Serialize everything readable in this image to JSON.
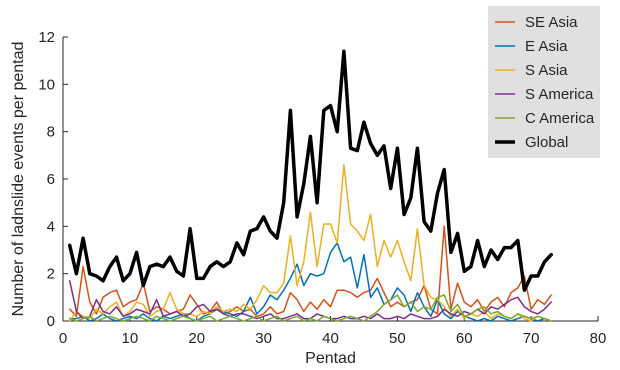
{
  "chart_data": {
    "type": "line",
    "xlabel": "Pentad",
    "ylabel": "Number of ladnslide events per pentad",
    "xlim": [
      0,
      80
    ],
    "ylim": [
      0,
      12
    ],
    "xticks": [
      0,
      10,
      20,
      30,
      40,
      50,
      60,
      70,
      80
    ],
    "yticks": [
      0,
      2,
      4,
      6,
      8,
      10,
      12
    ],
    "grid": false,
    "legend_position": "top-right",
    "x": [
      1,
      2,
      3,
      4,
      5,
      6,
      7,
      8,
      9,
      10,
      11,
      12,
      13,
      14,
      15,
      16,
      17,
      18,
      19,
      20,
      21,
      22,
      23,
      24,
      25,
      26,
      27,
      28,
      29,
      30,
      31,
      32,
      33,
      34,
      35,
      36,
      37,
      38,
      39,
      40,
      41,
      42,
      43,
      44,
      45,
      46,
      47,
      48,
      49,
      50,
      51,
      52,
      53,
      54,
      55,
      56,
      57,
      58,
      59,
      60,
      61,
      62,
      63,
      64,
      65,
      66,
      67,
      68,
      69,
      70,
      71,
      72,
      73
    ],
    "series": [
      {
        "name": "SE Asia",
        "color": "#d95319",
        "linewidth": 1.5,
        "values": [
          0.5,
          0.2,
          2.3,
          0.8,
          0.3,
          1.0,
          1.2,
          1.3,
          0.6,
          0.8,
          0.9,
          1.6,
          0.4,
          0.6,
          0.5,
          0.3,
          0.4,
          0.5,
          1.1,
          0.7,
          0.3,
          0.4,
          0.8,
          0.3,
          0.4,
          0.6,
          0.4,
          0.5,
          0.2,
          0.3,
          0.6,
          0.3,
          0.4,
          1.2,
          0.9,
          0.4,
          0.8,
          0.5,
          0.9,
          0.6,
          1.3,
          1.3,
          1.2,
          1.0,
          1.2,
          1.3,
          1.8,
          1.2,
          0.6,
          0.8,
          0.6,
          0.8,
          0.9,
          1.5,
          0.5,
          0.3,
          4.0,
          0.5,
          1.6,
          0.8,
          0.6,
          0.9,
          0.4,
          0.8,
          1.0,
          0.6,
          1.2,
          1.4,
          1.9,
          0.5,
          0.9,
          0.7,
          1.1
        ]
      },
      {
        "name": "E Asia",
        "color": "#0072bd",
        "linewidth": 1.5,
        "values": [
          0.1,
          0.1,
          0.2,
          0.0,
          0.1,
          0.3,
          0.1,
          0.0,
          0.1,
          0.2,
          0.1,
          0.3,
          0.1,
          0.0,
          0.2,
          0.1,
          0.2,
          0.3,
          0.1,
          0.0,
          0.2,
          0.3,
          0.5,
          0.4,
          0.3,
          0.2,
          0.4,
          1.0,
          0.3,
          0.6,
          1.1,
          0.9,
          1.3,
          1.8,
          2.4,
          1.5,
          2.0,
          1.9,
          2.0,
          2.9,
          3.3,
          2.5,
          2.7,
          1.4,
          2.8,
          1.0,
          1.4,
          0.7,
          0.9,
          1.4,
          1.1,
          0.4,
          1.2,
          0.6,
          0.2,
          0.9,
          0.3,
          0.1,
          0.4,
          0.2,
          0.1,
          0.0,
          0.1,
          0.0,
          0.2,
          0.1,
          0.0,
          0.1,
          0.2,
          0.1,
          0.0,
          0.1,
          0.0
        ]
      },
      {
        "name": "S Asia",
        "color": "#edb120",
        "linewidth": 1.5,
        "values": [
          0.0,
          0.4,
          0.2,
          0.1,
          0.5,
          0.3,
          0.6,
          0.8,
          0.2,
          0.4,
          0.8,
          0.7,
          0.2,
          0.4,
          0.5,
          1.2,
          0.5,
          0.3,
          0.3,
          0.2,
          0.4,
          0.3,
          0.6,
          0.4,
          0.5,
          0.4,
          0.7,
          0.5,
          0.9,
          1.5,
          1.2,
          1.2,
          1.6,
          3.6,
          1.5,
          2.5,
          4.6,
          2.3,
          4.1,
          4.1,
          3.3,
          6.6,
          4.1,
          3.8,
          3.4,
          4.5,
          2.3,
          3.4,
          2.7,
          3.4,
          2.5,
          1.7,
          3.9,
          1.5,
          1.0,
          0.9,
          0.6,
          0.2,
          0.5,
          0.1,
          0.3,
          0.2,
          0.4,
          0.1,
          0.3,
          0.2,
          0.1,
          0.3,
          0.1,
          0.0,
          0.2,
          0.1,
          0.0
        ]
      },
      {
        "name": "S America",
        "color": "#7e2f8e",
        "linewidth": 1.5,
        "values": [
          1.7,
          0.4,
          0.1,
          0.2,
          0.9,
          0.4,
          0.3,
          0.6,
          0.2,
          0.3,
          0.5,
          0.4,
          0.3,
          0.9,
          0.2,
          0.3,
          0.4,
          0.2,
          0.3,
          0.6,
          0.7,
          0.4,
          0.5,
          0.3,
          0.2,
          0.3,
          0.3,
          0.2,
          0.1,
          0.2,
          0.3,
          0.1,
          0.1,
          0.2,
          0.3,
          0.1,
          0.1,
          0.3,
          0.2,
          0.1,
          0.1,
          0.2,
          0.1,
          0.1,
          0.2,
          0.1,
          0.3,
          0.1,
          0.1,
          0.2,
          0.1,
          0.3,
          0.2,
          0.1,
          0.1,
          0.2,
          0.5,
          0.3,
          0.2,
          0.4,
          0.3,
          0.5,
          0.3,
          0.6,
          0.5,
          0.7,
          0.9,
          1.0,
          0.6,
          0.4,
          0.3,
          0.5,
          0.8
        ]
      },
      {
        "name": "C America",
        "color": "#77ac30",
        "linewidth": 1.5,
        "values": [
          0.1,
          0.0,
          0.1,
          0.2,
          0.0,
          0.1,
          0.2,
          0.1,
          0.0,
          0.1,
          0.2,
          0.1,
          0.0,
          0.2,
          0.1,
          0.0,
          0.1,
          0.2,
          0.1,
          0.0,
          0.1,
          0.2,
          0.0,
          0.1,
          0.2,
          0.1,
          0.0,
          0.1,
          0.2,
          0.0,
          0.1,
          0.2,
          0.0,
          0.1,
          0.2,
          0.0,
          0.1,
          0.0,
          0.2,
          0.1,
          0.0,
          0.1,
          0.2,
          0.1,
          0.0,
          0.2,
          0.4,
          0.7,
          0.9,
          1.1,
          0.6,
          0.8,
          0.4,
          0.6,
          0.5,
          1.0,
          1.1,
          0.4,
          0.7,
          0.2,
          0.3,
          0.5,
          0.6,
          0.3,
          0.4,
          0.2,
          0.1,
          0.3,
          0.2,
          0.1,
          0.2,
          0.1,
          0.0
        ]
      },
      {
        "name": "Global",
        "color": "#000000",
        "linewidth": 3.5,
        "values": [
          3.2,
          2.0,
          3.5,
          2.0,
          1.9,
          1.7,
          2.3,
          2.7,
          1.7,
          2.0,
          2.9,
          1.5,
          2.3,
          2.4,
          2.3,
          2.7,
          2.1,
          1.9,
          3.9,
          1.8,
          1.8,
          2.3,
          2.5,
          2.3,
          2.5,
          3.3,
          2.8,
          3.8,
          3.9,
          4.4,
          3.8,
          3.5,
          5.0,
          8.9,
          4.4,
          5.8,
          7.8,
          5.0,
          8.9,
          9.1,
          8.0,
          11.4,
          7.3,
          7.2,
          8.4,
          7.5,
          7.0,
          7.4,
          5.6,
          7.3,
          4.5,
          5.2,
          7.3,
          4.2,
          3.8,
          5.4,
          6.4,
          2.9,
          3.7,
          2.1,
          2.3,
          3.4,
          2.3,
          3.0,
          2.6,
          3.1,
          3.1,
          3.4,
          1.3,
          1.9,
          1.9,
          2.5,
          2.8
        ]
      }
    ]
  }
}
